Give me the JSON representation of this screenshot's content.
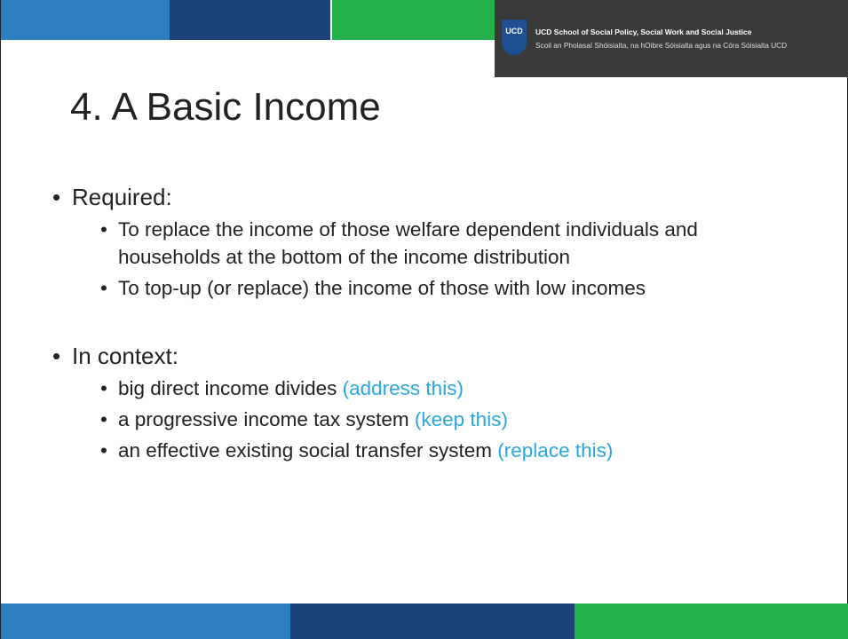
{
  "header": {
    "logo_text": "UCD",
    "line1": "UCD School of Social Policy, Social Work and Social Justice",
    "line2": "Scoil an Pholasaí Shóisialta, na hOibre Sóisialta agus na Córa Sóisialta UCD"
  },
  "title": "4. A Basic Income",
  "bullets": [
    {
      "text": "Required:",
      "children": [
        {
          "text": "To replace the income of those welfare dependent individuals and households at the bottom of the income distribution"
        },
        {
          "text": "To top-up (or replace) the income of those with low incomes"
        }
      ]
    },
    {
      "text": "In context:",
      "children": [
        {
          "text": "big direct income divides",
          "note": "(address this)"
        },
        {
          "text": "a progressive income tax system",
          "note": "(keep this)"
        },
        {
          "text": "an effective existing social transfer system",
          "note": "(replace this)"
        }
      ]
    }
  ]
}
